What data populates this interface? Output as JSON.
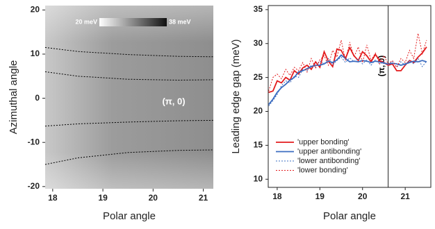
{
  "chart_data": [
    {
      "type": "line",
      "xlabel": "Polar angle",
      "ylabel": "Azimuthal angle",
      "xlim": [
        17.85,
        21.2
      ],
      "ylim": [
        -20.5,
        21
      ],
      "xticks": [
        18,
        19,
        20,
        21
      ],
      "yticks": [
        -20,
        -10,
        0,
        10,
        20
      ],
      "colorbar": {
        "min_label": "20 meV",
        "max_label": "38 meV"
      },
      "annotation": "(π, 0)",
      "x": [
        17.85,
        18.5,
        19.5,
        20.5,
        21.2
      ],
      "series": [
        {
          "color": "#000000",
          "dash": "dotted",
          "values": [
            11.5,
            10.6,
            9.9,
            9.5,
            9.4
          ]
        },
        {
          "color": "#000000",
          "dash": "dotted",
          "values": [
            6.0,
            5.0,
            4.3,
            4.1,
            4.2
          ]
        },
        {
          "color": "#000000",
          "dash": "dotted",
          "values": [
            -6.3,
            -5.8,
            -5.4,
            -5.1,
            -5.0
          ]
        },
        {
          "color": "#000000",
          "dash": "dotted",
          "values": [
            -15,
            -13.5,
            -12.3,
            -11.8,
            -11.7
          ]
        }
      ]
    },
    {
      "type": "line",
      "xlabel": "Polar angle",
      "ylabel": "Leading edge gap (meV)",
      "xlim": [
        17.79,
        21.6
      ],
      "ylim": [
        8.8,
        35.6
      ],
      "xticks": [
        18,
        19,
        20,
        21
      ],
      "yticks": [
        10,
        15,
        20,
        25,
        30,
        35
      ],
      "vline": {
        "x": 20.6,
        "label": "(π, 0)"
      },
      "legend": "lower left",
      "x": [
        17.8,
        17.9,
        18.0,
        18.1,
        18.2,
        18.3,
        18.4,
        18.5,
        18.6,
        18.7,
        18.8,
        18.9,
        19.0,
        19.1,
        19.2,
        19.3,
        19.4,
        19.5,
        19.6,
        19.7,
        19.8,
        19.9,
        20.0,
        20.1,
        20.2,
        20.3,
        20.4,
        20.5,
        20.6,
        20.7,
        20.8,
        20.9,
        21.0,
        21.1,
        21.2,
        21.3,
        21.4,
        21.5
      ],
      "series": [
        {
          "name": "'upper bonding'",
          "color": "#e31a1c",
          "dash": "solid",
          "values": [
            22.8,
            23.0,
            24.5,
            24.2,
            25.0,
            24.6,
            26.0,
            25.5,
            26.4,
            26.8,
            26.2,
            27.3,
            26.5,
            28.8,
            27.4,
            26.6,
            29.2,
            29.0,
            27.8,
            29.4,
            28.2,
            27.5,
            28.8,
            28.2,
            27.3,
            28.4,
            27.5,
            27.2,
            26.8,
            27.0,
            26.0,
            26.0,
            26.8,
            27.5,
            27.2,
            28.0,
            28.6,
            29.5
          ]
        },
        {
          "name": "'upper antibonding'",
          "color": "#3b6cc0",
          "dash": "solid",
          "values": [
            21.0,
            21.8,
            22.8,
            23.5,
            24.0,
            24.6,
            25.0,
            25.8,
            26.0,
            26.3,
            26.6,
            26.8,
            26.8,
            27.0,
            27.4,
            27.2,
            27.6,
            28.3,
            27.8,
            27.3,
            27.4,
            27.3,
            27.5,
            27.4,
            27.2,
            27.4,
            27.3,
            27.1,
            27.0,
            27.1,
            27.0,
            26.8,
            27.0,
            27.2,
            27.4,
            27.3,
            27.5,
            27.3
          ]
        },
        {
          "name": "'lower antibonding'",
          "color": "#3b6cc0",
          "dash": "dotted",
          "values": [
            20.8,
            21.6,
            22.5,
            23.8,
            24.5,
            24.2,
            25.2,
            25.0,
            26.2,
            26.0,
            26.8,
            26.5,
            27.4,
            27.0,
            27.8,
            26.9,
            27.5,
            28.0,
            27.2,
            27.9,
            27.3,
            27.8,
            27.0,
            27.6,
            26.8,
            27.6,
            27.0,
            27.3,
            26.9,
            27.4,
            26.5,
            27.3,
            26.8,
            27.5,
            27.0,
            27.8,
            26.6,
            27.4
          ]
        },
        {
          "name": "'lower bonding'",
          "color": "#e31a1c",
          "dash": "dotted",
          "values": [
            23.0,
            25.0,
            25.5,
            24.8,
            26.2,
            25.3,
            26.5,
            26.0,
            27.2,
            25.8,
            27.8,
            26.4,
            27.6,
            28.2,
            26.8,
            29.0,
            28.0,
            30.5,
            27.5,
            30.2,
            28.0,
            29.5,
            27.2,
            29.8,
            27.5,
            28.6,
            27.0,
            28.2,
            27.0,
            27.5,
            26.5,
            27.8,
            27.2,
            29.0,
            27.8,
            31.5,
            28.5,
            30.5
          ]
        }
      ]
    }
  ]
}
